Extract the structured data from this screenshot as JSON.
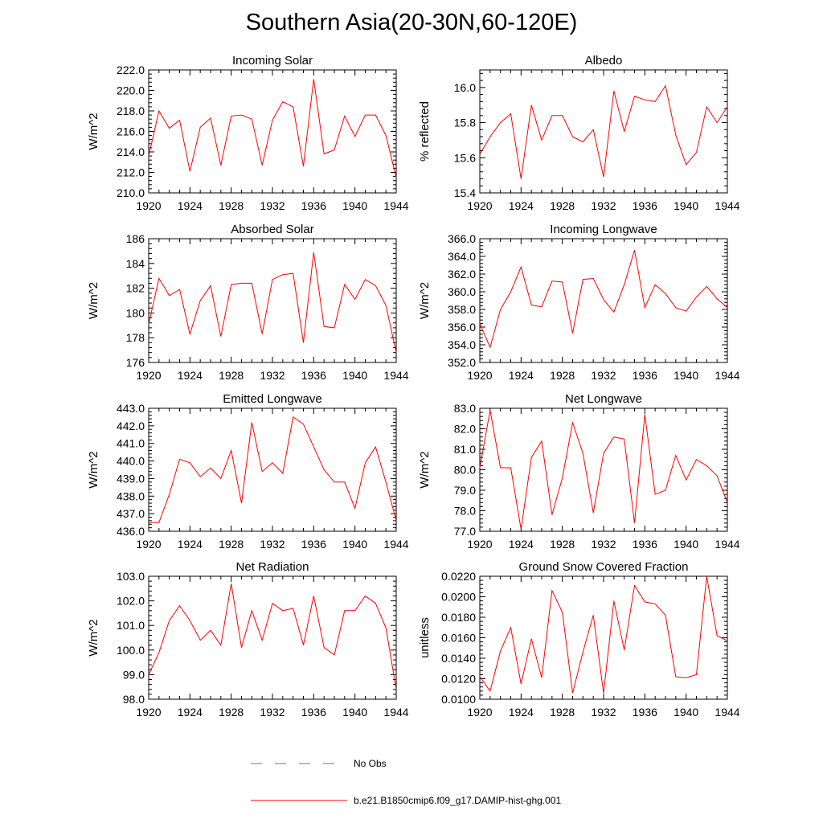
{
  "title": "Southern Asia(20-30N,60-120E)",
  "series_color": "#ff0000",
  "obs_color": "#6a6acd",
  "legend": {
    "obs_label": "No Obs",
    "model_label": "b.e21.B1850cmip6.f09_g17.DAMIP-hist-ghg.001"
  },
  "chart_data": [
    {
      "type": "line",
      "title": "Incoming Solar",
      "ylabel": "W/m^2",
      "xlim": [
        1920,
        1944
      ],
      "xticks": [
        "1920",
        "1924",
        "1928",
        "1932",
        "1936",
        "1940",
        "1944"
      ],
      "ylim": [
        210.0,
        222.0
      ],
      "yticks": [
        "210.0",
        "212.0",
        "214.0",
        "216.0",
        "218.0",
        "220.0",
        "222.0"
      ],
      "x": [
        1920,
        1921,
        1922,
        1923,
        1924,
        1925,
        1926,
        1927,
        1928,
        1929,
        1930,
        1931,
        1932,
        1933,
        1934,
        1935,
        1936,
        1937,
        1938,
        1939,
        1940,
        1941,
        1942,
        1943,
        1944
      ],
      "series": [
        {
          "values": [
            213.6,
            218.0,
            216.3,
            217.1,
            212.1,
            216.4,
            217.3,
            212.7,
            217.5,
            217.6,
            217.2,
            212.7,
            217.1,
            218.9,
            218.4,
            212.6,
            221.1,
            213.8,
            214.2,
            217.5,
            215.5,
            217.6,
            217.6,
            215.6,
            211.5
          ]
        }
      ]
    },
    {
      "type": "line",
      "title": "Albedo",
      "ylabel": "% reflected",
      "xlim": [
        1920,
        1944
      ],
      "xticks": [
        "1920",
        "1924",
        "1928",
        "1932",
        "1936",
        "1940",
        "1944"
      ],
      "ylim": [
        15.4,
        16.1
      ],
      "yticks": [
        "15.4",
        "15.6",
        "15.8",
        "16.0"
      ],
      "x": [
        1920,
        1921,
        1922,
        1923,
        1924,
        1925,
        1926,
        1927,
        1928,
        1929,
        1930,
        1931,
        1932,
        1933,
        1934,
        1935,
        1936,
        1937,
        1938,
        1939,
        1940,
        1941,
        1942,
        1943,
        1944
      ],
      "series": [
        {
          "values": [
            15.62,
            15.72,
            15.8,
            15.85,
            15.48,
            15.9,
            15.7,
            15.84,
            15.84,
            15.72,
            15.69,
            15.76,
            15.49,
            15.98,
            15.75,
            15.95,
            15.93,
            15.92,
            16.01,
            15.73,
            15.56,
            15.63,
            15.89,
            15.8,
            15.89
          ]
        }
      ]
    },
    {
      "type": "line",
      "title": "Absorbed Solar",
      "ylabel": "W/m^2",
      "xlim": [
        1920,
        1944
      ],
      "xticks": [
        "1920",
        "1924",
        "1928",
        "1932",
        "1936",
        "1940",
        "1944"
      ],
      "ylim": [
        176,
        186
      ],
      "yticks": [
        "176",
        "178",
        "180",
        "182",
        "184",
        "186"
      ],
      "x": [
        1920,
        1921,
        1922,
        1923,
        1924,
        1925,
        1926,
        1927,
        1928,
        1929,
        1930,
        1931,
        1932,
        1933,
        1934,
        1935,
        1936,
        1937,
        1938,
        1939,
        1940,
        1941,
        1942,
        1943,
        1944
      ],
      "series": [
        {
          "values": [
            179.1,
            182.8,
            181.4,
            181.9,
            178.3,
            181.0,
            182.2,
            178.1,
            182.3,
            182.4,
            182.4,
            178.3,
            182.7,
            183.1,
            183.2,
            177.6,
            184.9,
            178.9,
            178.8,
            182.3,
            181.1,
            182.7,
            182.2,
            180.6,
            176.8
          ]
        }
      ]
    },
    {
      "type": "line",
      "title": "Incoming Longwave",
      "ylabel": "W/m^2",
      "xlim": [
        1920,
        1944
      ],
      "xticks": [
        "1920",
        "1924",
        "1928",
        "1932",
        "1936",
        "1940",
        "1944"
      ],
      "ylim": [
        352.0,
        366.0
      ],
      "yticks": [
        "352.0",
        "354.0",
        "356.0",
        "358.0",
        "360.0",
        "362.0",
        "364.0",
        "366.0"
      ],
      "x": [
        1920,
        1921,
        1922,
        1923,
        1924,
        1925,
        1926,
        1927,
        1928,
        1929,
        1930,
        1931,
        1932,
        1933,
        1934,
        1935,
        1936,
        1937,
        1938,
        1939,
        1940,
        1941,
        1942,
        1943,
        1944
      ],
      "series": [
        {
          "values": [
            356.4,
            353.7,
            358.0,
            360.0,
            362.8,
            358.5,
            358.3,
            361.2,
            361.1,
            355.3,
            361.4,
            361.5,
            359.1,
            357.7,
            360.8,
            364.7,
            358.2,
            360.8,
            359.8,
            358.2,
            357.8,
            359.4,
            360.6,
            359.2,
            358.2
          ]
        }
      ]
    },
    {
      "type": "line",
      "title": "Emitted Longwave",
      "ylabel": "W/m^2",
      "xlim": [
        1920,
        1944
      ],
      "xticks": [
        "1920",
        "1924",
        "1928",
        "1932",
        "1936",
        "1940",
        "1944"
      ],
      "ylim": [
        436.0,
        443.0
      ],
      "yticks": [
        "436.0",
        "437.0",
        "438.0",
        "439.0",
        "440.0",
        "441.0",
        "442.0",
        "443.0"
      ],
      "x": [
        1920,
        1921,
        1922,
        1923,
        1924,
        1925,
        1926,
        1927,
        1928,
        1929,
        1930,
        1931,
        1932,
        1933,
        1934,
        1935,
        1936,
        1937,
        1938,
        1939,
        1940,
        1941,
        1942,
        1943,
        1944
      ],
      "series": [
        {
          "values": [
            436.5,
            436.5,
            438.1,
            440.1,
            439.9,
            439.1,
            439.6,
            439.0,
            440.6,
            437.6,
            442.2,
            439.4,
            439.9,
            439.3,
            442.5,
            442.1,
            440.8,
            439.5,
            438.8,
            438.8,
            437.3,
            439.9,
            440.8,
            438.8,
            436.6
          ]
        }
      ]
    },
    {
      "type": "line",
      "title": "Net Longwave",
      "ylabel": "W/m^2",
      "xlim": [
        1920,
        1944
      ],
      "xticks": [
        "1920",
        "1924",
        "1928",
        "1932",
        "1936",
        "1940",
        "1944"
      ],
      "ylim": [
        77.0,
        83.0
      ],
      "yticks": [
        "77.0",
        "78.0",
        "79.0",
        "80.0",
        "81.0",
        "82.0",
        "83.0"
      ],
      "x": [
        1920,
        1921,
        1922,
        1923,
        1924,
        1925,
        1926,
        1927,
        1928,
        1929,
        1930,
        1931,
        1932,
        1933,
        1934,
        1935,
        1936,
        1937,
        1938,
        1939,
        1940,
        1941,
        1942,
        1943,
        1944
      ],
      "series": [
        {
          "values": [
            80.1,
            82.9,
            80.1,
            80.1,
            77.1,
            80.6,
            81.4,
            77.8,
            79.6,
            82.3,
            80.8,
            77.9,
            80.8,
            81.6,
            81.5,
            77.4,
            82.7,
            78.8,
            79.0,
            80.7,
            79.5,
            80.5,
            80.2,
            79.7,
            78.4
          ]
        }
      ]
    },
    {
      "type": "line",
      "title": "Net Radiation",
      "ylabel": "W/m^2",
      "xlim": [
        1920,
        1944
      ],
      "xticks": [
        "1920",
        "1924",
        "1928",
        "1932",
        "1936",
        "1940",
        "1944"
      ],
      "ylim": [
        98.0,
        103.0
      ],
      "yticks": [
        "98.0",
        "99.0",
        "100.0",
        "101.0",
        "102.0",
        "103.0"
      ],
      "x": [
        1920,
        1921,
        1922,
        1923,
        1924,
        1925,
        1926,
        1927,
        1928,
        1929,
        1930,
        1931,
        1932,
        1933,
        1934,
        1935,
        1936,
        1937,
        1938,
        1939,
        1940,
        1941,
        1942,
        1943,
        1944
      ],
      "series": [
        {
          "values": [
            99.0,
            99.9,
            101.2,
            101.8,
            101.2,
            100.4,
            100.8,
            100.2,
            102.7,
            100.1,
            101.6,
            100.4,
            101.9,
            101.6,
            101.7,
            100.2,
            102.2,
            100.1,
            99.8,
            101.6,
            101.6,
            102.2,
            101.9,
            100.9,
            98.4
          ]
        }
      ]
    },
    {
      "type": "line",
      "title": "Ground Snow Covered Fraction",
      "ylabel": "unitless",
      "xlim": [
        1920,
        1944
      ],
      "xticks": [
        "1920",
        "1924",
        "1928",
        "1932",
        "1936",
        "1940",
        "1944"
      ],
      "ylim": [
        0.01,
        0.022
      ],
      "yticks": [
        "0.0100",
        "0.0120",
        "0.0140",
        "0.0160",
        "0.0180",
        "0.0200",
        "0.0220"
      ],
      "x": [
        1920,
        1921,
        1922,
        1923,
        1924,
        1925,
        1926,
        1927,
        1928,
        1929,
        1930,
        1931,
        1932,
        1933,
        1934,
        1935,
        1936,
        1937,
        1938,
        1939,
        1940,
        1941,
        1942,
        1943,
        1944
      ],
      "series": [
        {
          "values": [
            0.0122,
            0.0108,
            0.0147,
            0.017,
            0.0115,
            0.0159,
            0.0121,
            0.0206,
            0.0185,
            0.0106,
            0.0146,
            0.0182,
            0.0106,
            0.0196,
            0.0148,
            0.0211,
            0.0195,
            0.0193,
            0.0182,
            0.0122,
            0.0121,
            0.0124,
            0.022,
            0.0162,
            0.0157
          ]
        }
      ]
    }
  ]
}
